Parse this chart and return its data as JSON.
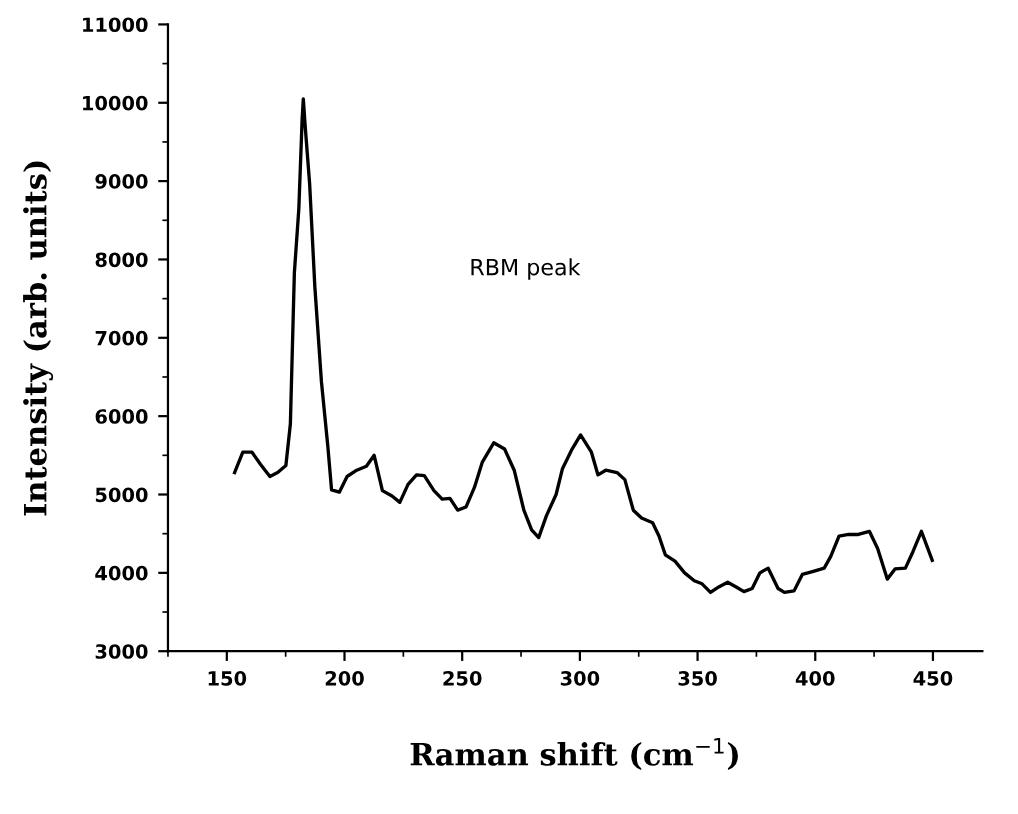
{
  "chart_data": {
    "type": "line",
    "xlabel": "Raman shift (cm$^{−1}$)",
    "ylabel": "Intensity (arb. units)",
    "annotations": [
      "RBM peak"
    ],
    "xlim": [
      125,
      471
    ],
    "xticks": [
      150,
      200,
      250,
      300,
      350,
      400,
      450
    ],
    "ylim": [
      3000,
      11000
    ],
    "yticks": [
      3000,
      4000,
      5000,
      6000,
      7000,
      8000,
      9000,
      10000,
      11000
    ],
    "grid": false,
    "legend": false,
    "marker": "none",
    "line_style": "solid",
    "series": [
      {
        "color": "#000000",
        "x": [
          153.3,
          156.8,
          160.7,
          164.2,
          168.3,
          171.6,
          175.1,
          177,
          178.7,
          180.6,
          182,
          182.5,
          183.3,
          185.2,
          187.4,
          190.2,
          192.9,
          194.5,
          197.8,
          201.1,
          205.2,
          209.3,
          212.6,
          216.1,
          220.2,
          223.5,
          227,
          230.6,
          233.9,
          238,
          241.5,
          244.8,
          248.1,
          251.6,
          255.2,
          258.5,
          263.4,
          268,
          272.1,
          276.2,
          279.5,
          282.5,
          285.8,
          289.9,
          292.6,
          296.7,
          300.3,
          304.9,
          307.7,
          311,
          315.8,
          319.1,
          322.7,
          326.2,
          330.9,
          333.6,
          336.3,
          340.4,
          344.5,
          348.6,
          351.9,
          355.5,
          359,
          362.8,
          366.4,
          369.7,
          373.2,
          376.5,
          380,
          384.2,
          386.9,
          391,
          394.5,
          399.2,
          403.8,
          406.6,
          410.1,
          414.2,
          418.3,
          423,
          426.5,
          430.6,
          433.9,
          438.3,
          441.5,
          445.1,
          449.7
        ],
        "values": [
          5280,
          5540,
          5540,
          5390,
          5230,
          5280,
          5370,
          5900,
          7830,
          8650,
          9790,
          10050,
          9700,
          8960,
          7650,
          6440,
          5620,
          5060,
          5030,
          5230,
          5310,
          5360,
          5500,
          5050,
          4980,
          4900,
          5130,
          5250,
          5240,
          5050,
          4940,
          4950,
          4800,
          4840,
          5090,
          5410,
          5660,
          5580,
          5310,
          4800,
          4550,
          4450,
          4730,
          5000,
          5330,
          5580,
          5760,
          5540,
          5250,
          5310,
          5280,
          5190,
          4800,
          4700,
          4640,
          4470,
          4230,
          4150,
          4000,
          3900,
          3860,
          3750,
          3820,
          3880,
          3820,
          3760,
          3800,
          4000,
          4060,
          3800,
          3750,
          3770,
          3980,
          4020,
          4060,
          4210,
          4470,
          4490,
          4490,
          4530,
          4310,
          3920,
          4050,
          4060,
          4270,
          4530,
          4160
        ]
      }
    ]
  }
}
